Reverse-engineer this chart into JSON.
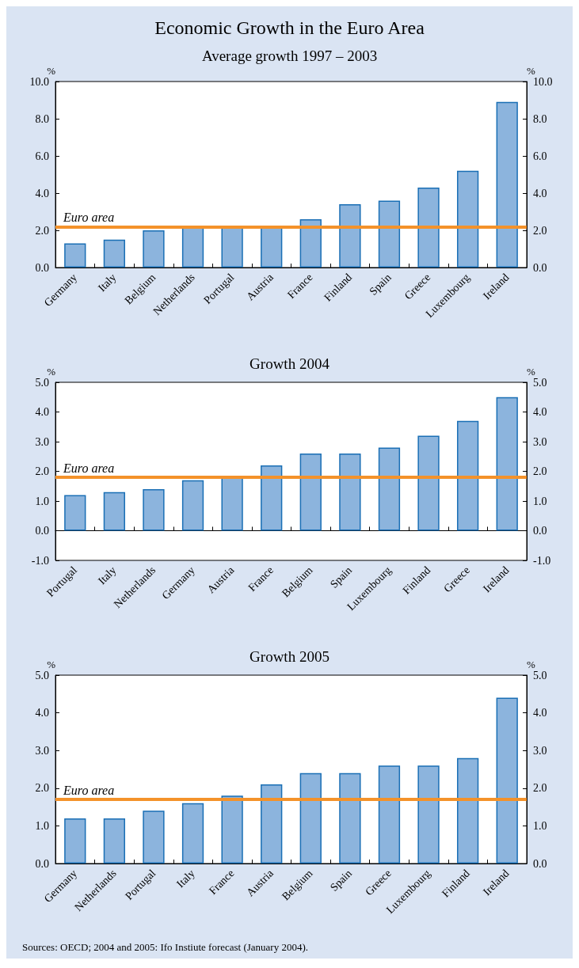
{
  "chart_data": [
    {
      "type": "bar",
      "title": "Economic Growth in the Euro Area",
      "subtitle": "Average growth 1997 – 2003",
      "ylabel": "%",
      "y2label": "%",
      "categories": [
        "Germany",
        "Italy",
        "Belgium",
        "Netherlands",
        "Portugal",
        "Austria",
        "France",
        "Finland",
        "Spain",
        "Greece",
        "Luxembourg",
        "Ireland"
      ],
      "series": [
        {
          "color": "#8cb4dd",
          "values": [
            1.3,
            1.5,
            2.0,
            2.2,
            2.2,
            2.2,
            2.6,
            3.4,
            3.6,
            4.3,
            5.2,
            8.9
          ]
        }
      ],
      "ylim": [
        0,
        10
      ],
      "yticks": [
        {
          "value": 0,
          "label": "0.0"
        },
        {
          "value": 2,
          "label": "2.0"
        },
        {
          "value": 4,
          "label": "4.0"
        },
        {
          "value": 6,
          "label": "6.0"
        },
        {
          "value": 8,
          "label": "8.0"
        },
        {
          "value": 10,
          "label": "10.0"
        }
      ],
      "y2lim": [
        0,
        10
      ],
      "y2ticks": [
        {
          "value": 0,
          "label": "0.0"
        },
        {
          "value": 2,
          "label": "2.0"
        },
        {
          "value": 4,
          "label": "4.0"
        },
        {
          "value": 6,
          "label": "6.0"
        },
        {
          "value": 8,
          "label": "8.0"
        },
        {
          "value": 10,
          "label": "10.0"
        }
      ],
      "ref_lines": [
        {
          "axis": "y",
          "value": 2.2,
          "label": "Euro area",
          "color": "#f4922a"
        }
      ]
    },
    {
      "type": "bar",
      "title": "Growth 2004",
      "ylabel": "%",
      "y2label": "%",
      "categories": [
        "Portugal",
        "Italy",
        "Netherlands",
        "Germany",
        "Austria",
        "France",
        "Belgium",
        "Spain",
        "Luxembourg",
        "Finland",
        "Greece",
        "Ireland"
      ],
      "series": [
        {
          "color": "#8cb4dd",
          "values": [
            1.2,
            1.3,
            1.4,
            1.7,
            1.8,
            2.2,
            2.6,
            2.6,
            2.8,
            3.2,
            3.7,
            4.5
          ]
        }
      ],
      "ylim": [
        -1,
        5
      ],
      "yticks": [
        {
          "value": -1,
          "label": "-1.0"
        },
        {
          "value": 0,
          "label": "0.0"
        },
        {
          "value": 1,
          "label": "1.0"
        },
        {
          "value": 2,
          "label": "2.0"
        },
        {
          "value": 3,
          "label": "3.0"
        },
        {
          "value": 4,
          "label": "4.0"
        },
        {
          "value": 5,
          "label": "5.0"
        }
      ],
      "y2lim": [
        -1,
        5
      ],
      "y2ticks": [
        {
          "value": -1,
          "label": "-1.0"
        },
        {
          "value": 0,
          "label": "0.0"
        },
        {
          "value": 1,
          "label": "1.0"
        },
        {
          "value": 2,
          "label": "2.0"
        },
        {
          "value": 3,
          "label": "3.0"
        },
        {
          "value": 4,
          "label": "4.0"
        },
        {
          "value": 5,
          "label": "5.0"
        }
      ],
      "ref_lines": [
        {
          "axis": "y",
          "value": 1.8,
          "label": "Euro area",
          "color": "#f4922a"
        }
      ]
    },
    {
      "type": "bar",
      "title": "Growth 2005",
      "ylabel": "%",
      "y2label": "%",
      "categories": [
        "Germany",
        "Netherlands",
        "Portugal",
        "Italy",
        "France",
        "Austria",
        "Belgium",
        "Spain",
        "Greece",
        "Luxembourg",
        "Finland",
        "Ireland"
      ],
      "series": [
        {
          "color": "#8cb4dd",
          "values": [
            1.2,
            1.2,
            1.4,
            1.6,
            1.8,
            2.1,
            2.4,
            2.4,
            2.6,
            2.6,
            2.8,
            4.4
          ]
        }
      ],
      "ylim": [
        0,
        5
      ],
      "yticks": [
        {
          "value": 0,
          "label": "0.0"
        },
        {
          "value": 1,
          "label": "1.0"
        },
        {
          "value": 2,
          "label": "2.0"
        },
        {
          "value": 3,
          "label": "3.0"
        },
        {
          "value": 4,
          "label": "4.0"
        },
        {
          "value": 5,
          "label": "5.0"
        }
      ],
      "y2lim": [
        0,
        5
      ],
      "y2ticks": [
        {
          "value": 0,
          "label": "0.0"
        },
        {
          "value": 1,
          "label": "1.0"
        },
        {
          "value": 2,
          "label": "2.0"
        },
        {
          "value": 3,
          "label": "3.0"
        },
        {
          "value": 4,
          "label": "4.0"
        },
        {
          "value": 5,
          "label": "5.0"
        }
      ],
      "ref_lines": [
        {
          "axis": "y",
          "value": 1.7,
          "label": "Euro area",
          "color": "#f4922a"
        }
      ],
      "annotations": [
        "Sources: OECD; 2004 and 2005: Ifo Instiute forecast (January 2004)."
      ]
    }
  ]
}
